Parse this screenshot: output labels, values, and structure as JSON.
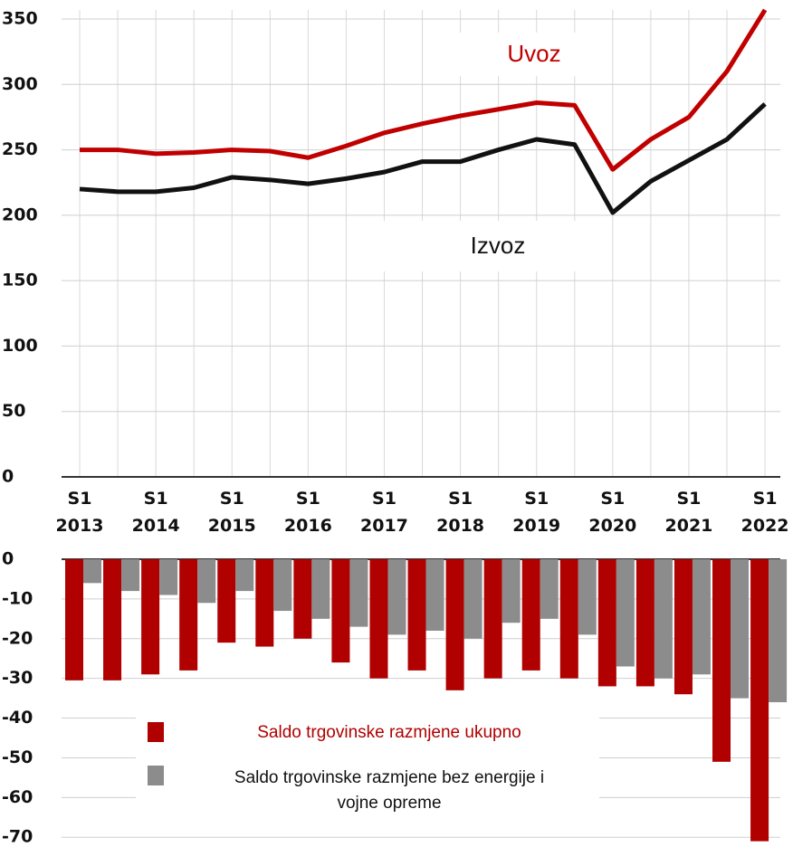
{
  "chart_data": [
    {
      "type": "line",
      "categories": [
        "S1\n2013",
        null,
        "S1\n2014",
        null,
        "S1\n2015",
        null,
        "S1\n2016",
        null,
        "S1\n2017",
        null,
        "S1\n2018",
        null,
        "S1\n2019",
        null,
        "S1\n2020",
        null,
        "S1\n2021",
        null,
        "S1\n2022"
      ],
      "series": [
        {
          "name": "Uvoz",
          "color": "#c00000",
          "values": [
            250,
            250,
            247,
            248,
            250,
            249,
            244,
            253,
            263,
            270,
            276,
            281,
            286,
            284,
            235,
            258,
            275,
            310,
            357
          ]
        },
        {
          "name": "Izvoz",
          "color": "#111111",
          "values": [
            220,
            218,
            218,
            221,
            229,
            227,
            224,
            228,
            233,
            241,
            241,
            250,
            258,
            254,
            202,
            226,
            242,
            258,
            285
          ]
        }
      ],
      "ylim": [
        0,
        350
      ],
      "yticks": [
        0,
        50,
        100,
        150,
        200,
        250,
        300,
        350
      ],
      "grid": true
    },
    {
      "type": "bar",
      "series": [
        {
          "name": "Saldo trgovinske razmjene ukupno",
          "color": "#b00000",
          "values": [
            -30.5,
            -30.5,
            -29,
            -28,
            -21,
            -22,
            -20,
            -26,
            -30,
            -28,
            -33,
            -30,
            -28,
            -30,
            -32,
            -32,
            -34,
            -51,
            -71
          ]
        },
        {
          "name": "Saldo trgovinske razmjene bez energije i\nvojne opreme",
          "color": "#8c8c8c",
          "values": [
            -6,
            -8,
            -9,
            -11,
            -8,
            -13,
            -15,
            -17,
            -19,
            -18,
            -20,
            -16,
            -15,
            -19,
            -27,
            -30,
            -29,
            -35,
            -36
          ]
        }
      ],
      "ylim": [
        -72,
        0
      ],
      "yticks": [
        0,
        -10,
        -20,
        -30,
        -40,
        -50,
        -60,
        -70
      ],
      "grid": true
    }
  ]
}
